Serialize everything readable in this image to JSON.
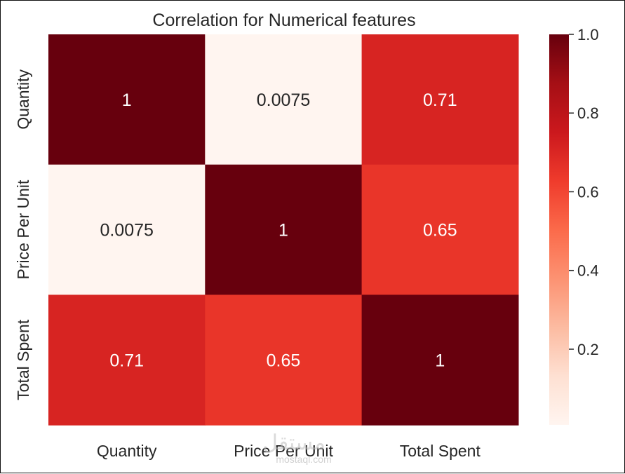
{
  "chart_data": {
    "type": "heatmap",
    "title": "Correlation for Numerical features",
    "x_labels": [
      "Quantity",
      "Price Per Unit",
      "Total Spent"
    ],
    "y_labels": [
      "Quantity",
      "Price Per Unit",
      "Total Spent"
    ],
    "values": [
      [
        1,
        0.0075,
        0.71
      ],
      [
        0.0075,
        1,
        0.65
      ],
      [
        0.71,
        0.65,
        1
      ]
    ],
    "annotations": [
      [
        "1",
        "0.0075",
        "0.71"
      ],
      [
        "0.0075",
        "1",
        "0.65"
      ],
      [
        "0.71",
        "0.65",
        "1"
      ]
    ],
    "colormap": "Reds",
    "colorbar": {
      "range": [
        0.0075,
        1.0
      ],
      "ticks": [
        0.2,
        0.4,
        0.6,
        0.8,
        1.0
      ],
      "tick_labels": [
        "0.2",
        "0.4",
        "0.6",
        "0.8",
        "1.0"
      ]
    }
  },
  "watermark": {
    "logo_text": "مستقل",
    "url": "mostaql.com"
  }
}
